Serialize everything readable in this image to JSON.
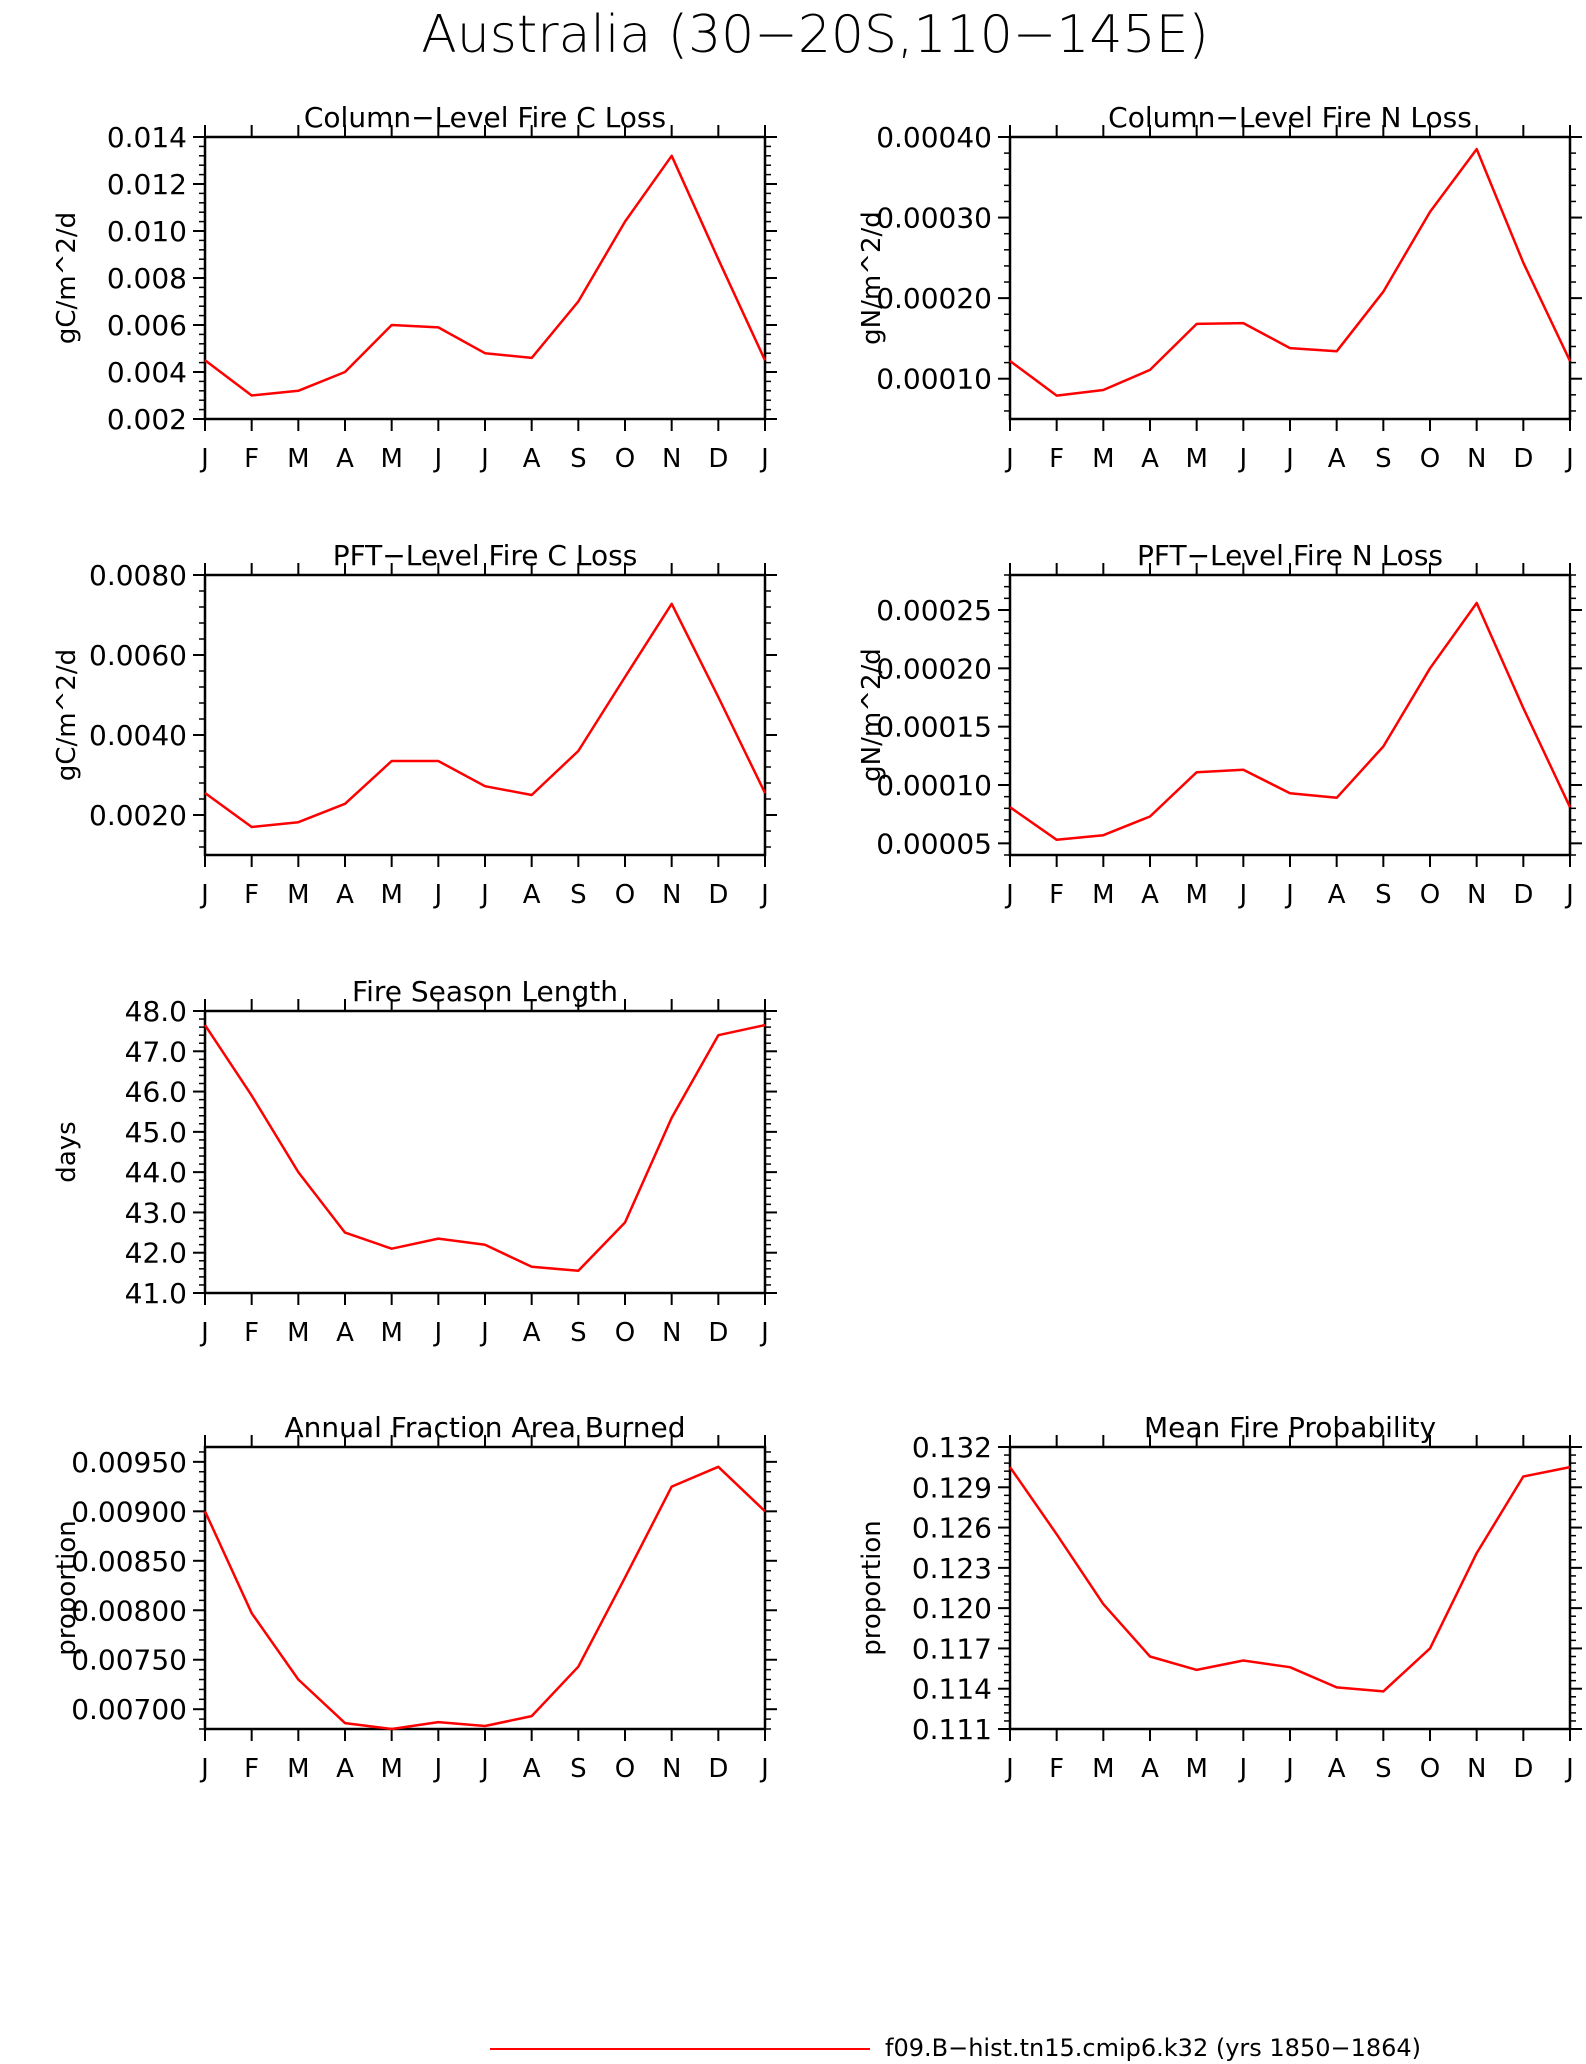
{
  "figure": {
    "title": "Australia (30−20S,110−145E)",
    "legend_label": "f09.B−hist.tn15.cmip6.k32 (yrs 1850−1864)",
    "line_color": "#ff0000"
  },
  "chart_data": [
    {
      "type": "line",
      "title": "Column−Level Fire C Loss",
      "ylabel": "gC/m^2/d",
      "categories": [
        "J",
        "F",
        "M",
        "A",
        "M",
        "J",
        "J",
        "A",
        "S",
        "O",
        "N",
        "D",
        "J"
      ],
      "series": [
        {
          "values": [
            0.0045,
            0.003,
            0.0032,
            0.004,
            0.006,
            0.0059,
            0.0048,
            0.0046,
            0.007,
            0.0104,
            0.0132,
            0.0088,
            0.0045
          ]
        }
      ],
      "ylim": [
        0.002,
        0.014
      ],
      "yticks": [
        0.002,
        0.004,
        0.006,
        0.008,
        0.01,
        0.012,
        0.014
      ],
      "ytick_labels": [
        "0.002",
        "0.004",
        "0.006",
        "0.008",
        "0.010",
        "0.012",
        "0.014"
      ]
    },
    {
      "type": "line",
      "title": "Column−Level Fire N Loss",
      "ylabel": "gN/m^2/d",
      "categories": [
        "J",
        "F",
        "M",
        "A",
        "M",
        "J",
        "J",
        "A",
        "S",
        "O",
        "N",
        "D",
        "J"
      ],
      "series": [
        {
          "values": [
            0.000122,
            7.9e-05,
            8.6e-05,
            0.000111,
            0.000168,
            0.000169,
            0.000138,
            0.000134,
            0.000208,
            0.000307,
            0.000385,
            0.000244,
            0.000122
          ]
        }
      ],
      "ylim": [
        5e-05,
        0.0004
      ],
      "yticks": [
        0.0001,
        0.0002,
        0.0003,
        0.0004
      ],
      "ytick_labels": [
        "0.00010",
        "0.00020",
        "0.00030",
        "0.00040"
      ]
    },
    {
      "type": "line",
      "title": "PFT−Level Fire C Loss",
      "ylabel": "gC/m^2/d",
      "categories": [
        "J",
        "F",
        "M",
        "A",
        "M",
        "J",
        "J",
        "A",
        "S",
        "O",
        "N",
        "D",
        "J"
      ],
      "series": [
        {
          "values": [
            0.00255,
            0.0017,
            0.00182,
            0.00228,
            0.00335,
            0.00335,
            0.00272,
            0.0025,
            0.0036,
            0.00545,
            0.00728,
            0.00495,
            0.00255
          ]
        }
      ],
      "ylim": [
        0.001,
        0.008
      ],
      "yticks": [
        0.002,
        0.004,
        0.006,
        0.008
      ],
      "ytick_labels": [
        "0.0020",
        "0.0040",
        "0.0060",
        "0.0080"
      ]
    },
    {
      "type": "line",
      "title": "PFT−Level Fire N Loss",
      "ylabel": "gN/m^2/d",
      "categories": [
        "J",
        "F",
        "M",
        "A",
        "M",
        "J",
        "J",
        "A",
        "S",
        "O",
        "N",
        "D",
        "J"
      ],
      "series": [
        {
          "values": [
            8.1e-05,
            5.3e-05,
            5.7e-05,
            7.3e-05,
            0.000111,
            0.000113,
            9.3e-05,
            8.9e-05,
            0.000133,
            0.0002,
            0.000256,
            0.000166,
            8.1e-05
          ]
        }
      ],
      "ylim": [
        4e-05,
        0.00028
      ],
      "yticks": [
        5e-05,
        0.0001,
        0.00015,
        0.0002,
        0.00025
      ],
      "ytick_labels": [
        "0.00005",
        "0.00010",
        "0.00015",
        "0.00020",
        "0.00025"
      ]
    },
    {
      "type": "line",
      "title": "Fire Season Length",
      "ylabel": "days",
      "categories": [
        "J",
        "F",
        "M",
        "A",
        "M",
        "J",
        "J",
        "A",
        "S",
        "O",
        "N",
        "D",
        "J"
      ],
      "series": [
        {
          "values": [
            47.65,
            45.9,
            44.0,
            42.5,
            42.1,
            42.35,
            42.2,
            41.65,
            41.55,
            42.75,
            45.35,
            47.4,
            47.65
          ]
        }
      ],
      "ylim": [
        41.0,
        48.0
      ],
      "yticks": [
        41,
        42,
        43,
        44,
        45,
        46,
        47,
        48
      ],
      "ytick_labels": [
        "41.0",
        "42.0",
        "43.0",
        "44.0",
        "45.0",
        "46.0",
        "47.0",
        "48.0"
      ]
    },
    {
      "type": "line",
      "title": "Annual Fraction Area Burned",
      "ylabel": "proportion",
      "categories": [
        "J",
        "F",
        "M",
        "A",
        "M",
        "J",
        "J",
        "A",
        "S",
        "O",
        "N",
        "D",
        "J"
      ],
      "series": [
        {
          "values": [
            0.009,
            0.00797,
            0.0073,
            0.00686,
            0.0068,
            0.00687,
            0.00683,
            0.00693,
            0.00743,
            0.00833,
            0.00925,
            0.00945,
            0.009
          ]
        }
      ],
      "ylim": [
        0.0068,
        0.00965
      ],
      "yticks": [
        0.007,
        0.0075,
        0.008,
        0.0085,
        0.009,
        0.0095
      ],
      "ytick_labels": [
        "0.00700",
        "0.00750",
        "0.00800",
        "0.00850",
        "0.00900",
        "0.00950"
      ]
    },
    {
      "type": "line",
      "title": "Mean Fire Probability",
      "ylabel": "proportion",
      "categories": [
        "J",
        "F",
        "M",
        "A",
        "M",
        "J",
        "J",
        "A",
        "S",
        "O",
        "N",
        "D",
        "J"
      ],
      "series": [
        {
          "values": [
            0.1305,
            0.1255,
            0.1203,
            0.1164,
            0.1154,
            0.1161,
            0.1156,
            0.1141,
            0.1138,
            0.117,
            0.1241,
            0.1298,
            0.1305
          ]
        }
      ],
      "ylim": [
        0.111,
        0.132
      ],
      "yticks": [
        0.111,
        0.114,
        0.117,
        0.12,
        0.123,
        0.126,
        0.129,
        0.132
      ],
      "ytick_labels": [
        "0.111",
        "0.114",
        "0.117",
        "0.120",
        "0.123",
        "0.126",
        "0.129",
        "0.132"
      ]
    }
  ]
}
